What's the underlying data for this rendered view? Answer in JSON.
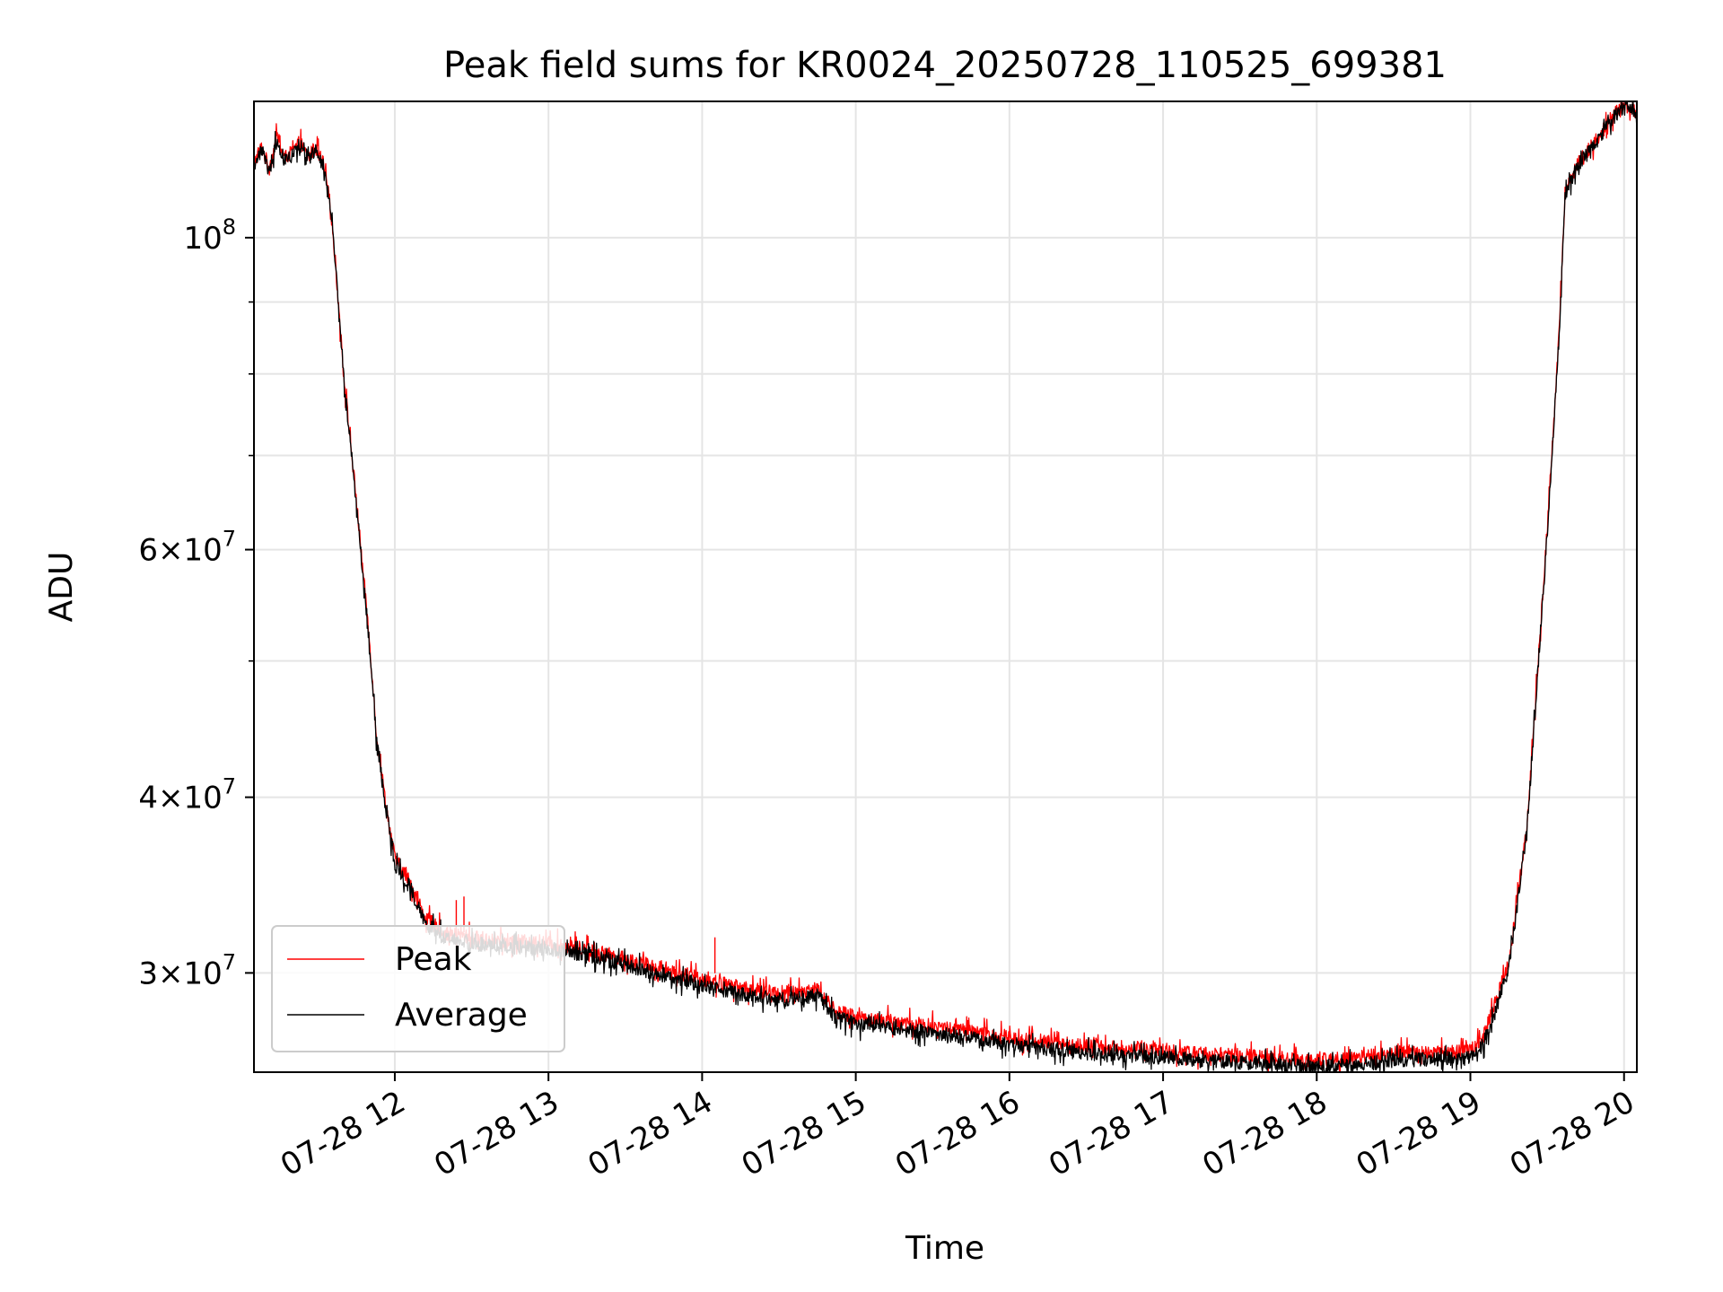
{
  "chart_data": {
    "type": "line",
    "title": "Peak field sums for KR0024_20250728_110525_699381",
    "xlabel": "Time",
    "ylabel": "ADU",
    "yscale": "log",
    "xlim": [
      "2025-07-28 11:05",
      "2025-07-28 20:05"
    ],
    "ylim": [
      25500000,
      125000000
    ],
    "x_ticks": [
      {
        "value": "2025-07-28 12:00",
        "label": "07-28 12"
      },
      {
        "value": "2025-07-28 13:00",
        "label": "07-28 13"
      },
      {
        "value": "2025-07-28 14:00",
        "label": "07-28 14"
      },
      {
        "value": "2025-07-28 15:00",
        "label": "07-28 15"
      },
      {
        "value": "2025-07-28 16:00",
        "label": "07-28 16"
      },
      {
        "value": "2025-07-28 17:00",
        "label": "07-28 17"
      },
      {
        "value": "2025-07-28 18:00",
        "label": "07-28 18"
      },
      {
        "value": "2025-07-28 19:00",
        "label": "07-28 19"
      },
      {
        "value": "2025-07-28 20:00",
        "label": "07-28 20"
      }
    ],
    "y_ticks_major": [
      {
        "value": 100000000,
        "base": "10",
        "exp": "8",
        "mant": ""
      },
      {
        "value": 60000000,
        "base": "10",
        "exp": "7",
        "mant": "6"
      },
      {
        "value": 40000000,
        "base": "10",
        "exp": "7",
        "mant": "4"
      },
      {
        "value": 30000000,
        "base": "10",
        "exp": "7",
        "mant": "3"
      }
    ],
    "y_ticks_minor": [
      90000000,
      80000000,
      70000000,
      50000000
    ],
    "grid": true,
    "legend_position": "lower-left",
    "noise_fraction": 0.012,
    "series": [
      {
        "name": "Peak",
        "color": "#ff0000",
        "points": [
          [
            "2025-07-28 11:05",
            113000000
          ],
          [
            "2025-07-28 11:08",
            116000000
          ],
          [
            "2025-07-28 11:11",
            112000000
          ],
          [
            "2025-07-28 11:14",
            118000000
          ],
          [
            "2025-07-28 11:17",
            114000000
          ],
          [
            "2025-07-28 11:20",
            115000000
          ],
          [
            "2025-07-28 11:23",
            117000000
          ],
          [
            "2025-07-28 11:26",
            114000000
          ],
          [
            "2025-07-28 11:29",
            116000000
          ],
          [
            "2025-07-28 11:32",
            113000000
          ],
          [
            "2025-07-28 11:35",
            105000000
          ],
          [
            "2025-07-28 11:37",
            95000000
          ],
          [
            "2025-07-28 11:40",
            80000000
          ],
          [
            "2025-07-28 11:45",
            65000000
          ],
          [
            "2025-07-28 11:50",
            52000000
          ],
          [
            "2025-07-28 11:53",
            44000000
          ],
          [
            "2025-07-28 11:57",
            39000000
          ],
          [
            "2025-07-28 12:00",
            36200000
          ],
          [
            "2025-07-28 12:06",
            34800000
          ],
          [
            "2025-07-28 12:12",
            32800000
          ],
          [
            "2025-07-28 12:20",
            32000000
          ],
          [
            "2025-07-28 12:30",
            31800000
          ],
          [
            "2025-07-28 12:45",
            31600000
          ],
          [
            "2025-07-28 13:00",
            31500000
          ],
          [
            "2025-07-28 13:15",
            31200000
          ],
          [
            "2025-07-28 13:30",
            30700000
          ],
          [
            "2025-07-28 13:45",
            30200000
          ],
          [
            "2025-07-28 14:00",
            29700000
          ],
          [
            "2025-07-28 14:15",
            29300000
          ],
          [
            "2025-07-28 14:30",
            29000000
          ],
          [
            "2025-07-28 14:45",
            29200000
          ],
          [
            "2025-07-28 14:52",
            28200000
          ],
          [
            "2025-07-28 15:00",
            27900000
          ],
          [
            "2025-07-28 15:30",
            27500000
          ],
          [
            "2025-07-28 16:00",
            27000000
          ],
          [
            "2025-07-28 16:30",
            26600000
          ],
          [
            "2025-07-28 17:00",
            26400000
          ],
          [
            "2025-07-28 17:30",
            26200000
          ],
          [
            "2025-07-28 18:00",
            26000000
          ],
          [
            "2025-07-28 18:15",
            26100000
          ],
          [
            "2025-07-28 18:30",
            26300000
          ],
          [
            "2025-07-28 19:00",
            26400000
          ],
          [
            "2025-07-28 19:05",
            27000000
          ],
          [
            "2025-07-28 19:15",
            30500000
          ],
          [
            "2025-07-28 19:22",
            38000000
          ],
          [
            "2025-07-28 19:30",
            62000000
          ],
          [
            "2025-07-28 19:35",
            88000000
          ],
          [
            "2025-07-28 19:37",
            108000000
          ],
          [
            "2025-07-28 19:42",
            113000000
          ],
          [
            "2025-07-28 19:50",
            118000000
          ],
          [
            "2025-07-28 19:57",
            123000000
          ],
          [
            "2025-07-28 20:00",
            124500000
          ],
          [
            "2025-07-28 20:05",
            123000000
          ]
        ],
        "spikes": [
          [
            "2025-07-28 12:24",
            33800000
          ],
          [
            "2025-07-28 12:27",
            34000000
          ],
          [
            "2025-07-28 14:05",
            31800000
          ]
        ]
      },
      {
        "name": "Average",
        "color": "#000000",
        "points": [
          [
            "2025-07-28 11:05",
            112500000
          ],
          [
            "2025-07-28 11:08",
            115500000
          ],
          [
            "2025-07-28 11:11",
            111500000
          ],
          [
            "2025-07-28 11:14",
            117500000
          ],
          [
            "2025-07-28 11:17",
            113500000
          ],
          [
            "2025-07-28 11:20",
            114500000
          ],
          [
            "2025-07-28 11:23",
            116500000
          ],
          [
            "2025-07-28 11:26",
            113500000
          ],
          [
            "2025-07-28 11:29",
            115500000
          ],
          [
            "2025-07-28 11:32",
            112500000
          ],
          [
            "2025-07-28 11:35",
            104500000
          ],
          [
            "2025-07-28 11:37",
            94500000
          ],
          [
            "2025-07-28 11:40",
            79600000
          ],
          [
            "2025-07-28 11:45",
            64700000
          ],
          [
            "2025-07-28 11:50",
            51700000
          ],
          [
            "2025-07-28 11:53",
            43700000
          ],
          [
            "2025-07-28 11:57",
            38700000
          ],
          [
            "2025-07-28 12:00",
            35900000
          ],
          [
            "2025-07-28 12:06",
            34500000
          ],
          [
            "2025-07-28 12:12",
            32500000
          ],
          [
            "2025-07-28 12:20",
            31700000
          ],
          [
            "2025-07-28 12:30",
            31500000
          ],
          [
            "2025-07-28 12:45",
            31300000
          ],
          [
            "2025-07-28 13:00",
            31200000
          ],
          [
            "2025-07-28 13:15",
            30900000
          ],
          [
            "2025-07-28 13:30",
            30400000
          ],
          [
            "2025-07-28 13:45",
            29900000
          ],
          [
            "2025-07-28 14:00",
            29400000
          ],
          [
            "2025-07-28 14:15",
            29000000
          ],
          [
            "2025-07-28 14:30",
            28700000
          ],
          [
            "2025-07-28 14:45",
            28900000
          ],
          [
            "2025-07-28 14:52",
            27900000
          ],
          [
            "2025-07-28 15:00",
            27600000
          ],
          [
            "2025-07-28 15:30",
            27200000
          ],
          [
            "2025-07-28 16:00",
            26700000
          ],
          [
            "2025-07-28 16:30",
            26300000
          ],
          [
            "2025-07-28 17:00",
            26100000
          ],
          [
            "2025-07-28 17:30",
            25900000
          ],
          [
            "2025-07-28 18:00",
            25700000
          ],
          [
            "2025-07-28 18:15",
            25800000
          ],
          [
            "2025-07-28 18:30",
            26000000
          ],
          [
            "2025-07-28 19:00",
            26100000
          ],
          [
            "2025-07-28 19:05",
            26700000
          ],
          [
            "2025-07-28 19:15",
            30200000
          ],
          [
            "2025-07-28 19:22",
            37700000
          ],
          [
            "2025-07-28 19:30",
            61500000
          ],
          [
            "2025-07-28 19:35",
            87500000
          ],
          [
            "2025-07-28 19:37",
            107500000
          ],
          [
            "2025-07-28 19:42",
            112500000
          ],
          [
            "2025-07-28 19:50",
            117500000
          ],
          [
            "2025-07-28 19:57",
            122500000
          ],
          [
            "2025-07-28 20:00",
            124000000
          ],
          [
            "2025-07-28 20:05",
            122500000
          ]
        ],
        "spikes": []
      }
    ]
  }
}
